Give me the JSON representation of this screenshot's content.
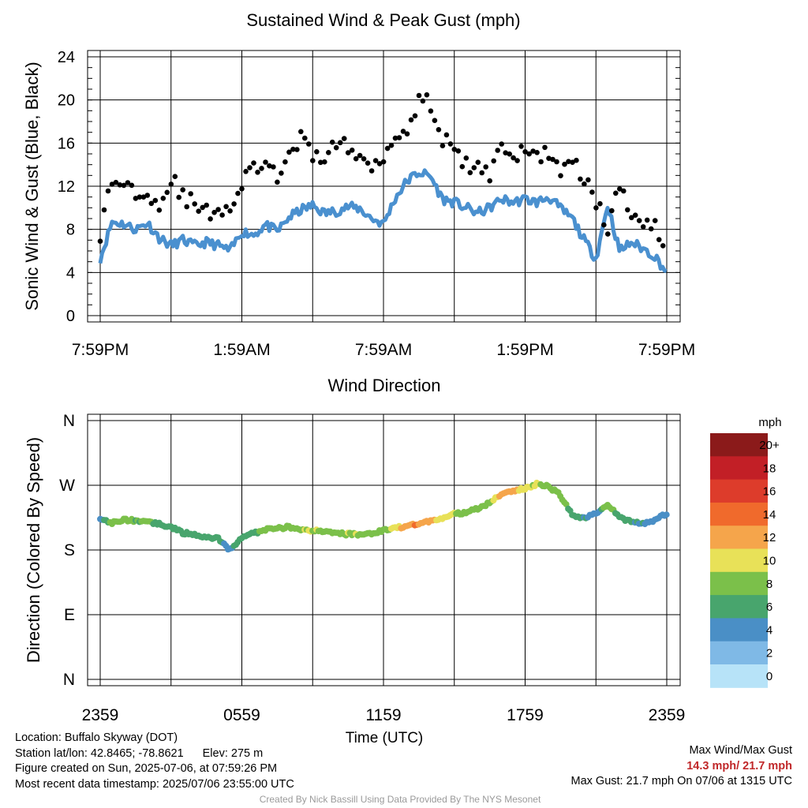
{
  "chart_data": [
    {
      "type": "line",
      "title": "Sustained Wind & Peak Gust (mph)",
      "ylabel": "Sonic Wind & Gust (Blue, Black)",
      "xlabel": "",
      "ylim": [
        0,
        24
      ],
      "yticks": [
        "0",
        "4",
        "8",
        "12",
        "16",
        "20",
        "24"
      ],
      "xticks": [
        "7:59PM",
        "1:59AM",
        "7:59AM",
        "1:59PM",
        "7:59PM"
      ],
      "grid": true,
      "series": [
        {
          "name": "Sustained Wind",
          "color": "#4a90cf",
          "x_hours": [
            0,
            0.5,
            1,
            1.5,
            2,
            2.5,
            3,
            3.5,
            4,
            4.5,
            5,
            5.5,
            6,
            6.5,
            7,
            7.5,
            8,
            8.5,
            9,
            9.5,
            10,
            10.5,
            11,
            11.5,
            12,
            12.5,
            13,
            13.5,
            14,
            14.5,
            15,
            15.5,
            16,
            16.5,
            17,
            17.5,
            18,
            18.5,
            19,
            19.5,
            20,
            20.5,
            21,
            21.5,
            22,
            22.5,
            23,
            23.5,
            24
          ],
          "values": [
            5.3,
            8.7,
            8.5,
            8.0,
            8.6,
            7.2,
            6.5,
            7.0,
            6.5,
            6.8,
            6.5,
            6.0,
            7.8,
            7.5,
            8.4,
            7.8,
            9.1,
            9.8,
            10.2,
            9.5,
            9.7,
            10.1,
            9.9,
            9.0,
            8.5,
            10.9,
            12.5,
            13.3,
            12.9,
            10.8,
            10.5,
            10.0,
            9.5,
            10.0,
            10.8,
            10.5,
            10.8,
            10.5,
            11.0,
            9.9,
            9.0,
            7.0,
            5.3,
            10.3,
            6.0,
            6.8,
            6.2,
            5.5,
            4.0
          ]
        },
        {
          "name": "Peak Gust",
          "color": "#000000",
          "x_hours": [
            0,
            0.5,
            1,
            1.5,
            2,
            2.5,
            3,
            3.5,
            4,
            4.5,
            5,
            5.5,
            6,
            6.5,
            7,
            7.5,
            8,
            8.5,
            9,
            9.5,
            10,
            10.5,
            11,
            11.5,
            12,
            12.5,
            13,
            13.5,
            14,
            14.5,
            15,
            15.5,
            16,
            16.5,
            17,
            17.5,
            18,
            18.5,
            19,
            19.5,
            20,
            20.5,
            21,
            21.5,
            22,
            22.5,
            23,
            23.5,
            24
          ],
          "values": [
            7.7,
            12.5,
            12.3,
            11.5,
            11.8,
            10.0,
            12.8,
            11.0,
            10.3,
            9.5,
            10.0,
            9.9,
            12.0,
            14.0,
            13.5,
            13.0,
            14.5,
            16.5,
            14.5,
            15.0,
            16.0,
            15.5,
            14.5,
            14.0,
            15.0,
            16.5,
            17.5,
            20.2,
            19.5,
            16.5,
            15.0,
            14.0,
            13.5,
            13.2,
            16.2,
            14.5,
            15.2,
            14.8,
            15.2,
            13.5,
            14.0,
            13.0,
            10.5,
            8.0,
            12.0,
            9.5,
            9.0,
            8.5,
            6.0
          ]
        }
      ]
    },
    {
      "type": "scatter",
      "title": "Wind Direction",
      "ylabel": "Direction (Colored By Speed)",
      "xlabel": "Time (UTC)",
      "ylim": [
        0,
        360
      ],
      "yticks": [
        "N",
        "E",
        "S",
        "W",
        "N"
      ],
      "xticks": [
        "2359",
        "0559",
        "1159",
        "1759",
        "2359"
      ],
      "grid": true,
      "x_hours": [
        0,
        0.5,
        1,
        1.5,
        2,
        2.5,
        3,
        3.5,
        4,
        4.5,
        5,
        5.5,
        6,
        6.5,
        7,
        7.5,
        8,
        8.5,
        9,
        9.5,
        10,
        10.5,
        11,
        11.5,
        12,
        12.5,
        13,
        13.5,
        14,
        14.5,
        15,
        15.5,
        16,
        16.5,
        17,
        17.5,
        18,
        18.5,
        19,
        19.5,
        20,
        20.5,
        21,
        21.5,
        22,
        22.5,
        23,
        23.5,
        24
      ],
      "direction_deg": [
        225,
        218,
        222,
        221,
        220,
        216,
        212,
        204,
        201,
        198,
        196,
        180,
        198,
        203,
        208,
        210,
        212,
        209,
        207,
        205,
        203,
        202,
        202,
        203,
        207,
        210,
        214,
        217,
        220,
        225,
        230,
        232,
        238,
        245,
        258,
        262,
        266,
        272,
        268,
        256,
        228,
        225,
        230,
        243,
        225,
        219,
        217,
        222,
        230
      ],
      "speed_mph": [
        4.5,
        9.5,
        8.5,
        8.0,
        8.5,
        7.0,
        6.5,
        6.8,
        6.3,
        6.5,
        6.2,
        5.5,
        7.5,
        7.5,
        8.5,
        8.5,
        9.5,
        10.0,
        10.0,
        9.5,
        9.5,
        10.0,
        10.0,
        9.0,
        8.5,
        11.0,
        13.5,
        14.3,
        12.5,
        10.5,
        10.5,
        8.5,
        8.5,
        9.5,
        12.5,
        12.5,
        10.5,
        10.0,
        9.5,
        8.5,
        7.5,
        6.0,
        4.5,
        10.0,
        6.5,
        6.0,
        6.0,
        5.5,
        4.5
      ]
    }
  ],
  "colorbar": {
    "unit_label": "mph",
    "labels": [
      "20+",
      "18",
      "16",
      "14",
      "12",
      "10",
      "8",
      "6",
      "4",
      "2",
      "0"
    ],
    "colors": [
      "#8b1a1a",
      "#c21f26",
      "#dd3c2b",
      "#f06a2c",
      "#f5a54b",
      "#e8e158",
      "#7bc04a",
      "#48a56d",
      "#4a8fc6",
      "#7fb9e6",
      "#b7e3f8"
    ]
  },
  "info": {
    "location": "Location: Buffalo Skyway (DOT)",
    "latlon": "Station lat/lon: 42.8465; -78.8621",
    "elev": "Elev: 275 m",
    "created": "Figure created on Sun, 2025-07-06, at 07:59:26 PM",
    "recent": "Most recent data timestamp: 2025/07/06 23:55:00 UTC",
    "max_header": "Max Wind/Max Gust",
    "max_values": "14.3 mph/ 21.7 mph",
    "max_gust": "Max Gust: 21.7 mph On 07/06 at 1315 UTC",
    "credit": "Created By Nick Bassill Using Data Provided By The NYS Mesonet"
  }
}
